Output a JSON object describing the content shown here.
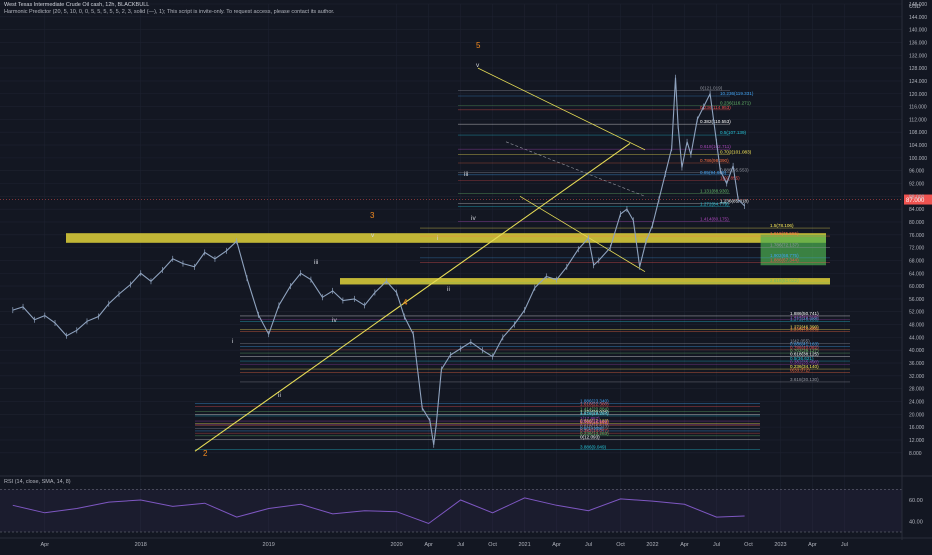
{
  "header": {
    "title": "West Texas Intermediate Crude Oil cash, 12h, BLACKBULL",
    "indicator": "Harmonic Predictor (20, 5, 10, 0, 0, 5, 5, 5, 5, 5, 2, 3, solid (—), 1); This script is invite-only. To request access, please contact its author."
  },
  "rsi_label": "RSI (14, close, SMA, 14, 8)",
  "colors": {
    "background": "#131722",
    "price_line": "#8fa3bf",
    "zone": "#e0d23a",
    "green_box": "#4caf50",
    "trendline": "#e6dc56",
    "wave_orange": "#f58b1f",
    "wave_white": "#d1d4dc",
    "rsi": "#7e57c2"
  },
  "chart_data": [
    {
      "type": "line",
      "title": "",
      "ylabel": "USD",
      "ylim": [
        2,
        148
      ],
      "y_ticks": [
        8,
        12,
        16,
        20,
        24,
        28,
        32,
        36,
        40,
        44,
        48,
        52,
        56,
        60,
        64,
        68,
        72,
        76,
        80,
        84,
        88,
        92,
        96,
        100,
        104,
        108,
        112,
        116,
        120,
        124,
        128,
        132,
        136,
        140,
        144,
        148
      ],
      "y_tick_labels": [
        "8.000",
        "12.000",
        "16.000",
        "20.000",
        "24.000",
        "28.000",
        "32.000",
        "36.000",
        "40.000",
        "44.000",
        "48.000",
        "52.000",
        "56.000",
        "60.000",
        "64.000",
        "68.000",
        "72.000",
        "76.000",
        "80.000",
        "84.000",
        "88.000",
        "92.000",
        "96.000",
        "100.000",
        "104.000",
        "108.000",
        "112.000",
        "116.000",
        "120.000",
        "124.000",
        "128.000",
        "132.000",
        "136.000",
        "140.000",
        "144.000",
        "148.000"
      ],
      "x_tick_labels": [
        "Apr",
        "2018",
        "2019",
        "2020",
        "Apr",
        "Jul",
        "Oct",
        "2021",
        "Apr",
        "Jul",
        "Oct",
        "2022",
        "Apr",
        "Jul",
        "Oct",
        "2023",
        "Apr",
        "Jul"
      ],
      "x_tick_values": [
        2017.25,
        2018.0,
        2019.0,
        2020.0,
        2020.25,
        2020.5,
        2020.75,
        2021.0,
        2021.25,
        2021.5,
        2021.75,
        2022.0,
        2022.25,
        2022.5,
        2022.75,
        2023.0,
        2023.25,
        2023.5
      ],
      "xlim": [
        2016.9,
        2023.95
      ],
      "current_price_label": "87.000",
      "series": [
        {
          "name": "",
          "x": [
            2017.0,
            2017.08,
            2017.17,
            2017.25,
            2017.33,
            2017.42,
            2017.5,
            2017.58,
            2017.67,
            2017.75,
            2017.83,
            2017.92,
            2018.0,
            2018.08,
            2018.17,
            2018.25,
            2018.33,
            2018.42,
            2018.5,
            2018.58,
            2018.67,
            2018.75,
            2018.83,
            2018.92,
            2019.0,
            2019.08,
            2019.17,
            2019.25,
            2019.33,
            2019.42,
            2019.5,
            2019.58,
            2019.67,
            2019.75,
            2019.83,
            2019.92,
            2020.0,
            2020.06,
            2020.13,
            2020.2,
            2020.26,
            2020.29,
            2020.31,
            2020.35,
            2020.42,
            2020.5,
            2020.58,
            2020.67,
            2020.75,
            2020.83,
            2020.92,
            2021.0,
            2021.08,
            2021.17,
            2021.25,
            2021.33,
            2021.42,
            2021.5,
            2021.54,
            2021.58,
            2021.67,
            2021.75,
            2021.8,
            2021.85,
            2021.9,
            2021.95,
            2022.0,
            2022.05,
            2022.1,
            2022.15,
            2022.18,
            2022.2,
            2022.23,
            2022.27,
            2022.3,
            2022.35,
            2022.4,
            2022.45,
            2022.5,
            2022.53,
            2022.58,
            2022.63,
            2022.67,
            2022.72
          ],
          "values": [
            52.5,
            53.5,
            49.5,
            50.8,
            48.5,
            44.5,
            46.2,
            49.0,
            50.5,
            54.5,
            57.5,
            60.5,
            64.0,
            61.5,
            65.0,
            68.5,
            67.0,
            66.0,
            70.5,
            68.5,
            71.0,
            74.0,
            62.5,
            51.0,
            45.0,
            54.0,
            60.0,
            64.0,
            62.0,
            56.5,
            58.5,
            55.5,
            56.0,
            54.0,
            58.0,
            61.5,
            58.0,
            50.5,
            45.0,
            22.0,
            18.0,
            10.5,
            17.0,
            34.0,
            38.5,
            40.5,
            42.5,
            40.0,
            38.0,
            44.0,
            48.0,
            52.5,
            59.5,
            63.0,
            62.0,
            66.0,
            71.5,
            75.0,
            66.5,
            68.0,
            72.0,
            82.5,
            84.0,
            80.5,
            66.0,
            74.0,
            79.0,
            87.0,
            95.0,
            103.0,
            125.0,
            110.0,
            97.0,
            105.0,
            101.0,
            112.0,
            116.0,
            120.0,
            105.0,
            96.0,
            92.0,
            97.5,
            87.0,
            85.0
          ]
        }
      ],
      "zones": [
        {
          "y_from": 73.5,
          "y_to": 76.5
        },
        {
          "y_from": 60.5,
          "y_to": 62.5
        }
      ],
      "green_box": {
        "x_from": 2022.72,
        "x_to": 2023.5,
        "y_from": 66.5,
        "y_to": 76.0
      },
      "wave_labels_orange": [
        "2",
        "3",
        "4",
        "5"
      ],
      "wave_labels_white": [
        "i",
        "ii",
        "iii",
        "iv",
        "v",
        "i",
        "ii",
        "iii",
        "iv",
        "v",
        "i",
        "ii",
        "iii",
        "iv",
        "v"
      ],
      "levels": [
        {
          "label": "0(121.019)",
          "y": 121.0
        },
        {
          "label": "10.236(119.331)",
          "y": 119.3
        },
        {
          "label": "0.236(114.953)",
          "y": 115.0
        },
        {
          "label": "0.236(116.271)",
          "y": 116.3
        },
        {
          "label": "0.382(110.553)",
          "y": 110.5
        },
        {
          "label": "0.5(107.139)",
          "y": 107.1
        },
        {
          "label": "0.618(102.711)",
          "y": 102.7
        },
        {
          "label": "0.702(101.083)",
          "y": 101.1
        },
        {
          "label": "0.786(98.390)",
          "y": 98.4
        },
        {
          "label": "0.886(95.553)",
          "y": 95.5
        },
        {
          "label": "0.85(94.686)",
          "y": 94.7
        },
        {
          "label": "1(92.855)",
          "y": 92.9
        },
        {
          "label": "1.131(88.930)",
          "y": 88.9
        },
        {
          "label": "1.236(85.818)",
          "y": 85.8
        },
        {
          "label": "1.272(84.779)",
          "y": 84.8
        },
        {
          "label": "1.414(80.175)",
          "y": 80.2
        },
        {
          "label": "1.5(78.106)",
          "y": 78.1
        },
        {
          "label": "1.618(75.555)",
          "y": 75.6
        },
        {
          "label": "1.786(72.137)",
          "y": 72.1
        },
        {
          "label": "1.902(68.775)",
          "y": 68.8
        },
        {
          "label": "1.886(67.344)",
          "y": 67.3
        },
        {
          "label": "2.618(61.022)",
          "y": 61.0
        },
        {
          "label": "1.886(50.741)",
          "y": 50.7
        },
        {
          "label": "1.272(48.988)",
          "y": 49.0
        },
        {
          "label": "1.414(49.508)",
          "y": 49.5
        },
        {
          "label": "1.272(46.390)",
          "y": 46.4
        },
        {
          "label": "1.236(45.886)",
          "y": 45.9
        },
        {
          "label": "1(42.055)",
          "y": 42.1
        },
        {
          "label": "0.886(41.163)",
          "y": 41.2
        },
        {
          "label": "0.786(40.082)",
          "y": 40.1
        },
        {
          "label": "0.702(39.127)",
          "y": 39.1
        },
        {
          "label": "0.618(38.125)",
          "y": 38.1
        },
        {
          "label": "0.5(36.621)",
          "y": 36.6
        },
        {
          "label": "0.382(35.490)",
          "y": 35.5
        },
        {
          "label": "0.236(34.140)",
          "y": 34.1
        },
        {
          "label": "0(33.072)",
          "y": 33.1
        },
        {
          "label": "3.618(30.130)",
          "y": 30.1
        },
        {
          "label": "1.886(23.340)",
          "y": 23.3
        },
        {
          "label": "1.618(22.380)",
          "y": 22.4
        },
        {
          "label": "1.414(20.884)",
          "y": 20.9
        },
        {
          "label": "1.272(20.025)",
          "y": 20.0
        },
        {
          "label": "1.236(19.504)",
          "y": 19.5
        },
        {
          "label": "1(17.887)",
          "y": 17.9
        },
        {
          "label": "0.886(17.183)",
          "y": 17.2
        },
        {
          "label": "0.786(16.563)",
          "y": 16.6
        },
        {
          "label": "0.618(15.513)",
          "y": 15.5
        },
        {
          "label": "0.5(14.808)",
          "y": 14.8
        },
        {
          "label": "0.382(14.077)",
          "y": 14.1
        },
        {
          "label": "0.236(13.283)",
          "y": 13.3
        },
        {
          "label": "0(12.093)",
          "y": 12.1
        },
        {
          "label": "3.886(9.049)",
          "y": 9.0
        },
        {
          "label": "3.618(16.911)",
          "y": 16.9
        }
      ]
    },
    {
      "type": "line",
      "title": "",
      "ylim": [
        30,
        75
      ],
      "y_ticks": [
        40,
        60
      ],
      "y_tick_labels": [
        "40.00",
        "60.00"
      ],
      "series": [
        {
          "name": "RSI",
          "x": [
            2017.0,
            2017.25,
            2017.5,
            2017.75,
            2018.0,
            2018.25,
            2018.5,
            2018.75,
            2019.0,
            2019.25,
            2019.5,
            2019.75,
            2020.0,
            2020.25,
            2020.5,
            2020.75,
            2021.0,
            2021.25,
            2021.5,
            2021.75,
            2022.0,
            2022.25,
            2022.5,
            2022.72
          ],
          "values": [
            55,
            48,
            52,
            58,
            60,
            54,
            57,
            44,
            52,
            56,
            47,
            50,
            49,
            38,
            60,
            48,
            62,
            55,
            50,
            61,
            59,
            56,
            44,
            45
          ]
        }
      ]
    }
  ]
}
